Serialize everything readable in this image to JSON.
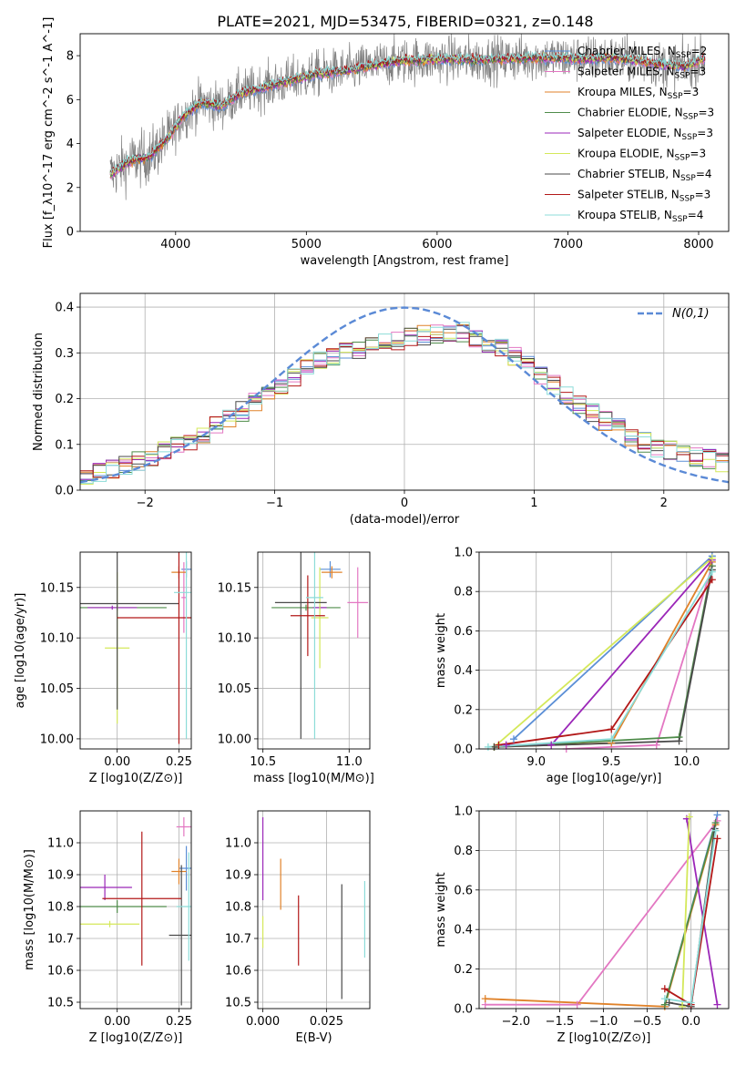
{
  "figure_title": "PLATE=2021, MJD=53475, FIBERID=0321, z=0.148",
  "colors": {
    "Chabrier MILES": "#5b8fd6",
    "Salpeter MILES": "#e377c2",
    "Kroupa MILES": "#e0822a",
    "Chabrier ELODIE": "#4f8c4a",
    "Salpeter ELODIE": "#9b27b8",
    "Kroupa ELODIE": "#d4e85a",
    "Chabrier STELIB": "#4a4a4a",
    "Salpeter STELIB": "#b21818",
    "Kroupa STELIB": "#8cdcd8",
    "data": "#808080",
    "normal": "#5b8ad6"
  },
  "chart_data": [
    {
      "id": "spectrum",
      "type": "line",
      "xlabel": "wavelength [Angstrom, rest frame]",
      "ylabel": "Flux [f_λ10^-17 erg cm^-2 s^-1 A^-1]",
      "xlim": [
        3270,
        8230
      ],
      "ylim": [
        0,
        9
      ],
      "xticks": [
        4000,
        5000,
        6000,
        7000,
        8000
      ],
      "yticks": [
        0,
        2,
        4,
        6,
        8
      ],
      "legend": [
        {
          "name": "Chabrier MILES",
          "nssp": "2"
        },
        {
          "name": "Salpeter MILES",
          "nssp": "3"
        },
        {
          "name": "Kroupa MILES",
          "nssp": "3"
        },
        {
          "name": "Chabrier ELODIE",
          "nssp": "3"
        },
        {
          "name": "Salpeter ELODIE",
          "nssp": "3"
        },
        {
          "name": "Kroupa ELODIE",
          "nssp": "3"
        },
        {
          "name": "Chabrier STELIB",
          "nssp": "4"
        },
        {
          "name": "Salpeter STELIB",
          "nssp": "3"
        },
        {
          "name": "Kroupa STELIB",
          "nssp": "4"
        }
      ],
      "continuum": [
        [
          3500,
          2.6
        ],
        [
          3650,
          3.2
        ],
        [
          3800,
          3.4
        ],
        [
          3950,
          4.3
        ],
        [
          4050,
          5.2
        ],
        [
          4200,
          5.9
        ],
        [
          4350,
          5.7
        ],
        [
          4500,
          6.3
        ],
        [
          4700,
          6.6
        ],
        [
          4900,
          6.9
        ],
        [
          5100,
          7.2
        ],
        [
          5300,
          7.3
        ],
        [
          5500,
          7.55
        ],
        [
          5700,
          7.75
        ],
        [
          5900,
          7.8
        ],
        [
          6100,
          7.85
        ],
        [
          6300,
          7.8
        ],
        [
          6500,
          7.85
        ],
        [
          6700,
          7.9
        ],
        [
          6900,
          7.9
        ],
        [
          7100,
          7.85
        ],
        [
          7300,
          7.9
        ],
        [
          7500,
          7.8
        ],
        [
          7700,
          7.6
        ],
        [
          7900,
          7.5
        ],
        [
          8050,
          7.9
        ]
      ]
    },
    {
      "id": "residuals",
      "type": "line",
      "xlabel": "(data-model)/error",
      "ylabel": "Normed distribution",
      "xlim": [
        -2.5,
        2.5
      ],
      "ylim": [
        0,
        0.43
      ],
      "xticks": [
        -2,
        -1,
        0,
        1,
        2
      ],
      "yticks": [
        0.0,
        0.1,
        0.2,
        0.3,
        0.4
      ],
      "legend_label": "N(0,1)",
      "hist_bin_width": 0.1,
      "hist_shape": [
        [
          -2.5,
          0.03
        ],
        [
          -2.2,
          0.05
        ],
        [
          -2.0,
          0.07
        ],
        [
          -1.8,
          0.09
        ],
        [
          -1.5,
          0.13
        ],
        [
          -1.2,
          0.18
        ],
        [
          -1.0,
          0.22
        ],
        [
          -0.8,
          0.26
        ],
        [
          -0.5,
          0.3
        ],
        [
          -0.2,
          0.32
        ],
        [
          0.0,
          0.33
        ],
        [
          0.2,
          0.34
        ],
        [
          0.4,
          0.35
        ],
        [
          0.6,
          0.33
        ],
        [
          0.8,
          0.3
        ],
        [
          1.0,
          0.26
        ],
        [
          1.2,
          0.22
        ],
        [
          1.5,
          0.16
        ],
        [
          1.8,
          0.11
        ],
        [
          2.0,
          0.09
        ],
        [
          2.3,
          0.07
        ],
        [
          2.5,
          0.06
        ]
      ]
    },
    {
      "id": "age_vs_Z",
      "type": "scatter",
      "xlabel": "Z [log10(Z/Z⊙)]",
      "ylabel": "age [log10(age/yr)]",
      "xlim": [
        -0.15,
        0.3
      ],
      "ylim": [
        9.99,
        10.185
      ],
      "xticks": [
        0.0,
        0.25
      ],
      "yticks": [
        10.0,
        10.05,
        10.1,
        10.15
      ],
      "points": [
        {
          "name": "Chabrier MILES",
          "x": 0.28,
          "y": 10.168,
          "ex": 0.02,
          "ey": 0.008
        },
        {
          "name": "Salpeter MILES",
          "x": 0.27,
          "y": 10.14,
          "ex": 0.01,
          "ey": 0.035
        },
        {
          "name": "Kroupa MILES",
          "x": 0.25,
          "y": 10.165,
          "ex": 0.03,
          "ey": 0.006
        },
        {
          "name": "Chabrier ELODIE",
          "x": 0.0,
          "y": 10.13,
          "ex": 0.2,
          "ey": 0.003
        },
        {
          "name": "Salpeter ELODIE",
          "x": -0.02,
          "y": 10.13,
          "ex": 0.1,
          "ey": 0.002
        },
        {
          "name": "Kroupa ELODIE",
          "x": 0.0,
          "y": 10.09,
          "ex": 0.05,
          "ey": 0.075
        },
        {
          "name": "Chabrier STELIB",
          "x": 0.0,
          "y": 10.134,
          "ex": 0.25,
          "ey": 0.105
        },
        {
          "name": "Salpeter STELIB",
          "x": 0.25,
          "y": 10.12,
          "ex": 0.25,
          "ey": 0.125
        },
        {
          "name": "Kroupa STELIB",
          "x": 0.28,
          "y": 10.145,
          "ex": 0.05,
          "ey": 0.145
        }
      ]
    },
    {
      "id": "age_vs_mass",
      "type": "scatter",
      "xlabel": "mass [log10(M/M⊙)]",
      "ylabel": "",
      "xlim": [
        10.47,
        11.12
      ],
      "ylim": [
        9.99,
        10.185
      ],
      "xticks": [
        10.5,
        11.0
      ],
      "yticks": [
        10.0,
        10.05,
        10.1,
        10.15
      ],
      "points": [
        {
          "name": "Chabrier MILES",
          "x": 10.89,
          "y": 10.168,
          "ex": 0.06,
          "ey": 0.008
        },
        {
          "name": "Salpeter MILES",
          "x": 11.05,
          "y": 10.135,
          "ex": 0.06,
          "ey": 0.035
        },
        {
          "name": "Kroupa MILES",
          "x": 10.9,
          "y": 10.165,
          "ex": 0.06,
          "ey": 0.006
        },
        {
          "name": "Chabrier ELODIE",
          "x": 10.75,
          "y": 10.13,
          "ex": 0.2,
          "ey": 0.003
        },
        {
          "name": "Salpeter ELODIE",
          "x": 10.83,
          "y": 10.13,
          "ex": 0.04,
          "ey": 0.002
        },
        {
          "name": "Kroupa ELODIE",
          "x": 10.83,
          "y": 10.12,
          "ex": 0.05,
          "ey": 0.05
        },
        {
          "name": "Chabrier STELIB",
          "x": 10.72,
          "y": 10.135,
          "ex": 0.15,
          "ey": 0.135
        },
        {
          "name": "Salpeter STELIB",
          "x": 10.76,
          "y": 10.122,
          "ex": 0.1,
          "ey": 0.04
        },
        {
          "name": "Kroupa STELIB",
          "x": 10.8,
          "y": 10.14,
          "ex": 0.05,
          "ey": 0.14
        }
      ]
    },
    {
      "id": "weight_vs_age",
      "type": "line",
      "xlabel": "age [log10(age/yr)]",
      "ylabel": "mass weight",
      "xlim": [
        8.62,
        10.28
      ],
      "ylim": [
        0,
        1.0
      ],
      "xticks": [
        9.0,
        9.5,
        10.0
      ],
      "yticks": [
        0.0,
        0.2,
        0.4,
        0.6,
        0.8,
        1.0
      ],
      "series": [
        {
          "name": "Chabrier MILES",
          "points": [
            [
              8.85,
              0.05
            ],
            [
              10.17,
              0.98
            ]
          ]
        },
        {
          "name": "Salpeter MILES",
          "points": [
            [
              9.2,
              0.0
            ],
            [
              9.8,
              0.02
            ],
            [
              10.17,
              0.93
            ]
          ]
        },
        {
          "name": "Kroupa MILES",
          "points": [
            [
              8.72,
              0.01
            ],
            [
              9.5,
              0.03
            ],
            [
              10.17,
              0.95
            ]
          ]
        },
        {
          "name": "Chabrier ELODIE",
          "points": [
            [
              8.72,
              0.01
            ],
            [
              9.95,
              0.06
            ],
            [
              10.17,
              0.93
            ]
          ]
        },
        {
          "name": "Salpeter ELODIE",
          "points": [
            [
              8.8,
              0.02
            ],
            [
              9.1,
              0.02
            ],
            [
              10.17,
              0.96
            ]
          ]
        },
        {
          "name": "Kroupa ELODIE",
          "points": [
            [
              8.72,
              0.01
            ],
            [
              10.17,
              0.97
            ]
          ]
        },
        {
          "name": "Chabrier STELIB",
          "points": [
            [
              8.72,
              0.01
            ],
            [
              9.95,
              0.04
            ],
            [
              10.17,
              0.91
            ]
          ]
        },
        {
          "name": "Salpeter STELIB",
          "points": [
            [
              8.75,
              0.02
            ],
            [
              9.5,
              0.1
            ],
            [
              10.17,
              0.86
            ]
          ]
        },
        {
          "name": "Kroupa STELIB",
          "points": [
            [
              8.68,
              0.01
            ],
            [
              9.5,
              0.05
            ],
            [
              10.17,
              0.9
            ]
          ]
        }
      ]
    },
    {
      "id": "mass_vs_Z",
      "type": "scatter",
      "xlabel": "Z [log10(Z/Z⊙)]",
      "ylabel": "mass [log10(M/M⊙)]",
      "xlim": [
        -0.15,
        0.3
      ],
      "ylim": [
        10.48,
        11.1
      ],
      "xticks": [
        0.0,
        0.25
      ],
      "yticks": [
        10.5,
        10.6,
        10.7,
        10.8,
        10.9,
        11.0
      ],
      "points": [
        {
          "name": "Chabrier MILES",
          "x": 0.28,
          "y": 10.92,
          "ex": 0.03,
          "ey": 0.07
        },
        {
          "name": "Salpeter MILES",
          "x": 0.27,
          "y": 11.05,
          "ex": 0.03,
          "ey": 0.03
        },
        {
          "name": "Kroupa MILES",
          "x": 0.25,
          "y": 10.91,
          "ex": 0.03,
          "ey": 0.04
        },
        {
          "name": "Chabrier ELODIE",
          "x": 0.0,
          "y": 10.8,
          "ex": 0.2,
          "ey": 0.02
        },
        {
          "name": "Salpeter ELODIE",
          "x": -0.05,
          "y": 10.86,
          "ex": 0.11,
          "ey": 0.04
        },
        {
          "name": "Kroupa ELODIE",
          "x": -0.03,
          "y": 10.745,
          "ex": 0.12,
          "ey": 0.01
        },
        {
          "name": "Chabrier STELIB",
          "x": 0.26,
          "y": 10.71,
          "ex": 0.05,
          "ey": 0.22
        },
        {
          "name": "Salpeter STELIB",
          "x": 0.1,
          "y": 10.825,
          "ex": 0.16,
          "ey": 0.21
        },
        {
          "name": "Kroupa STELIB",
          "x": 0.29,
          "y": 10.8,
          "ex": 0.05,
          "ey": 0.17
        }
      ]
    },
    {
      "id": "mass_vs_ebv",
      "type": "scatter",
      "xlabel": "E(B-V)",
      "ylabel": "",
      "xlim": [
        -0.002,
        0.042
      ],
      "ylim": [
        10.48,
        11.1
      ],
      "xticks": [
        0.0,
        0.025
      ],
      "yticks": [
        10.5,
        10.6,
        10.7,
        10.8,
        10.9,
        11.0
      ],
      "points": [
        {
          "name": "Salpeter ELODIE",
          "x": 0.0,
          "y": 10.95,
          "ey": 0.13
        },
        {
          "name": "Kroupa ELODIE",
          "x": 0.0,
          "y": 10.72,
          "ey": 0.05
        },
        {
          "name": "Kroupa MILES",
          "x": 0.007,
          "y": 10.87,
          "ey": 0.08
        },
        {
          "name": "Salpeter STELIB",
          "x": 0.014,
          "y": 10.725,
          "ey": 0.11
        },
        {
          "name": "Chabrier STELIB",
          "x": 0.031,
          "y": 10.69,
          "ey": 0.18
        },
        {
          "name": "Kroupa STELIB",
          "x": 0.04,
          "y": 10.76,
          "ey": 0.12
        }
      ]
    },
    {
      "id": "weight_vs_Z",
      "type": "line",
      "xlabel": "Z [log10(Z/Z⊙)]",
      "ylabel": "mass weight",
      "xlim": [
        -2.42,
        0.43
      ],
      "ylim": [
        0,
        1.0
      ],
      "xticks": [
        -2.0,
        -1.5,
        -1.0,
        -0.5,
        0.0
      ],
      "yticks": [
        0.0,
        0.2,
        0.4,
        0.6,
        0.8,
        1.0
      ],
      "series": [
        {
          "name": "Chabrier MILES",
          "points": [
            [
              -0.3,
              0.02
            ],
            [
              0.3,
              0.98
            ]
          ]
        },
        {
          "name": "Salpeter MILES",
          "points": [
            [
              -2.35,
              0.02
            ],
            [
              -1.3,
              0.02
            ],
            [
              0.3,
              0.95
            ]
          ]
        },
        {
          "name": "Kroupa MILES",
          "points": [
            [
              -2.35,
              0.05
            ],
            [
              -0.3,
              0.01
            ],
            [
              0.28,
              0.93
            ]
          ]
        },
        {
          "name": "Chabrier ELODIE",
          "points": [
            [
              -0.3,
              0.02
            ],
            [
              0.28,
              0.94
            ]
          ]
        },
        {
          "name": "Salpeter ELODIE",
          "points": [
            [
              -0.05,
              0.96
            ],
            [
              0.3,
              0.02
            ]
          ]
        },
        {
          "name": "Kroupa ELODIE",
          "points": [
            [
              -0.1,
              0.01
            ],
            [
              -0.02,
              0.97
            ]
          ]
        },
        {
          "name": "Chabrier STELIB",
          "points": [
            [
              -0.25,
              0.03
            ],
            [
              0.0,
              0.01
            ],
            [
              0.27,
              0.91
            ]
          ]
        },
        {
          "name": "Salpeter STELIB",
          "points": [
            [
              -0.3,
              0.1
            ],
            [
              0.0,
              0.02
            ],
            [
              0.3,
              0.86
            ]
          ]
        },
        {
          "name": "Kroupa STELIB",
          "points": [
            [
              -0.3,
              0.05
            ],
            [
              0.0,
              0.03
            ],
            [
              0.28,
              0.9
            ]
          ]
        }
      ]
    }
  ]
}
